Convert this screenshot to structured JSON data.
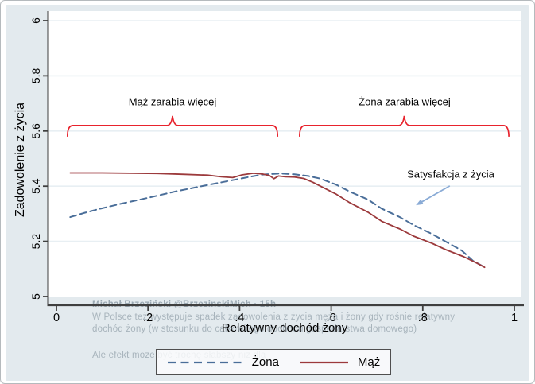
{
  "window": {
    "border_color": "#b5babd",
    "background": "#ffffff",
    "outer_bg": "#e3eaee",
    "plot_bg": "#ffffff"
  },
  "colors": {
    "gridline": "#e8eff3",
    "axis": "#3f3f3f",
    "text": "#000000",
    "wife_line": "#4a6e99",
    "husband_line": "#9c3a3c",
    "brace": "#e8232d",
    "arrow": "#8aabd6",
    "watermark": "#a8b4bc"
  },
  "chart_data": {
    "type": "line",
    "title": "",
    "xlabel": "Relatywny dochód żony",
    "ylabel": "Zadowolenie z życia",
    "xlim": [
      0,
      1
    ],
    "ylim": [
      5,
      6
    ],
    "grid": "horizontal",
    "x_ticks": [
      {
        "v": 0,
        "label": "0"
      },
      {
        "v": 0.2,
        "label": ".2"
      },
      {
        "v": 0.4,
        "label": ".4"
      },
      {
        "v": 0.6,
        "label": ".6"
      },
      {
        "v": 0.8,
        "label": ".8"
      },
      {
        "v": 1,
        "label": "1"
      }
    ],
    "y_ticks": [
      {
        "v": 5,
        "label": "5"
      },
      {
        "v": 5.2,
        "label": "5.2"
      },
      {
        "v": 5.4,
        "label": "5.4"
      },
      {
        "v": 5.6,
        "label": "5.6"
      },
      {
        "v": 5.8,
        "label": "5.8"
      },
      {
        "v": 6,
        "label": "6"
      }
    ],
    "series": [
      {
        "name": "Żona",
        "line_style": "dashed",
        "color": "#4a6e99",
        "points": [
          [
            0.03,
            5.288
          ],
          [
            0.06,
            5.303
          ],
          [
            0.09,
            5.316
          ],
          [
            0.14,
            5.336
          ],
          [
            0.2,
            5.358
          ],
          [
            0.26,
            5.381
          ],
          [
            0.32,
            5.401
          ],
          [
            0.37,
            5.417
          ],
          [
            0.42,
            5.433
          ],
          [
            0.45,
            5.442
          ],
          [
            0.49,
            5.446
          ],
          [
            0.52,
            5.443
          ],
          [
            0.55,
            5.437
          ],
          [
            0.575,
            5.428
          ],
          [
            0.61,
            5.406
          ],
          [
            0.64,
            5.381
          ],
          [
            0.68,
            5.352
          ],
          [
            0.71,
            5.319
          ],
          [
            0.75,
            5.288
          ],
          [
            0.78,
            5.259
          ],
          [
            0.82,
            5.227
          ],
          [
            0.85,
            5.199
          ],
          [
            0.885,
            5.167
          ],
          [
            0.91,
            5.129
          ],
          [
            0.929,
            5.112
          ]
        ]
      },
      {
        "name": "Mąż",
        "line_style": "solid",
        "color": "#9c3a3c",
        "points": [
          [
            0.03,
            5.448
          ],
          [
            0.1,
            5.448
          ],
          [
            0.16,
            5.447
          ],
          [
            0.22,
            5.446
          ],
          [
            0.28,
            5.443
          ],
          [
            0.33,
            5.44
          ],
          [
            0.36,
            5.434
          ],
          [
            0.385,
            5.431
          ],
          [
            0.405,
            5.441
          ],
          [
            0.43,
            5.447
          ],
          [
            0.45,
            5.444
          ],
          [
            0.465,
            5.439
          ],
          [
            0.475,
            5.427
          ],
          [
            0.485,
            5.437
          ],
          [
            0.5,
            5.434
          ],
          [
            0.52,
            5.433
          ],
          [
            0.54,
            5.428
          ],
          [
            0.56,
            5.414
          ],
          [
            0.58,
            5.397
          ],
          [
            0.61,
            5.372
          ],
          [
            0.64,
            5.341
          ],
          [
            0.68,
            5.306
          ],
          [
            0.71,
            5.273
          ],
          [
            0.75,
            5.245
          ],
          [
            0.78,
            5.219
          ],
          [
            0.82,
            5.193
          ],
          [
            0.85,
            5.17
          ],
          [
            0.89,
            5.144
          ],
          [
            0.92,
            5.12
          ],
          [
            0.935,
            5.106
          ]
        ]
      }
    ],
    "annotations": {
      "brace_left": {
        "label": "Mąż zarabia więcej",
        "x_start": 0.024,
        "x_end": 0.483,
        "y": 5.62,
        "color": "#e8232d"
      },
      "brace_right": {
        "label": "Żona zarabia więcej",
        "x_start": 0.531,
        "x_end": 0.988,
        "y": 5.62,
        "color": "#e8232d"
      },
      "callout": {
        "label": "Satysfakcja z życia",
        "text_x": 0.861,
        "text_y": 5.444,
        "arrow_from_x": 0.859,
        "arrow_from_y": 5.401,
        "arrow_to_x": 0.785,
        "arrow_to_y": 5.331,
        "color": "#8aabd6"
      }
    },
    "legend": {
      "position": "bottom-center",
      "entries": [
        {
          "label": "Żona",
          "style": "dashed"
        },
        {
          "label": "Mąż",
          "style": "solid"
        }
      ]
    }
  },
  "watermark": {
    "lines": [
      "Michał Brzeziński @BrzezinskiMich · 15h",
      "W Polsce też występuje spadek zadowolenia z życia męża i żony gdy rośnie relatywny",
      "dochód żony (w stosunku do całkowitego dochodu gospodarstwa domowego)",
      "Ale efekt może być trochę słabszy niż dla"
    ]
  }
}
